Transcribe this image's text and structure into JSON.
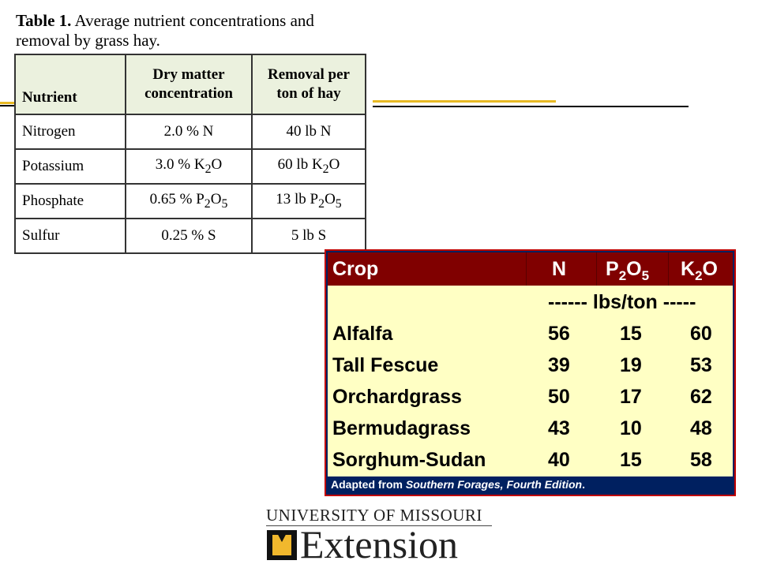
{
  "table1": {
    "caption_label": "Table 1.",
    "caption_text": " Average nutrient concentrations and removal by grass hay.",
    "headers": {
      "nutrient": "Nutrient",
      "dm_line1": "Dry matter",
      "dm_line2": "concentration",
      "rm_line1": "Removal per",
      "rm_line2": "ton of hay"
    },
    "rows": [
      {
        "nutrient": "Nitrogen",
        "dm_pre": "2.0 % N",
        "dm_sub": "",
        "dm_post": "",
        "rm_pre": "40 lb N",
        "rm_sub": "",
        "rm_post": ""
      },
      {
        "nutrient": "Potassium",
        "dm_pre": "3.0 % K",
        "dm_sub": "2",
        "dm_post": "O",
        "rm_pre": "60 lb K",
        "rm_sub": "2",
        "rm_post": "O"
      },
      {
        "nutrient": "Phosphate",
        "dm_pre": "0.65 % P",
        "dm_sub": "2",
        "dm_post": "O",
        "dm_sub2": "5",
        "rm_pre": "13 lb P",
        "rm_sub": "2",
        "rm_post": "O",
        "rm_sub2": "5"
      },
      {
        "nutrient": "Sulfur",
        "dm_pre": "0.25 % S",
        "dm_sub": "",
        "dm_post": "",
        "rm_pre": "5 lb S",
        "rm_sub": "",
        "rm_post": ""
      }
    ]
  },
  "table2": {
    "header": {
      "crop": "Crop",
      "n": "N",
      "p_pre": "P",
      "p_sub": "2",
      "p_post": "O",
      "p_sub2": "5",
      "k_pre": "K",
      "k_sub": "2",
      "k_post": "O"
    },
    "units": "------ lbs/ton -----",
    "rows": [
      {
        "crop": "Alfalfa",
        "n": "56",
        "p": "15",
        "k": "60"
      },
      {
        "crop": "Tall Fescue",
        "n": "39",
        "p": "19",
        "k": "53"
      },
      {
        "crop": "Orchardgrass",
        "n": "50",
        "p": "17",
        "k": "62"
      },
      {
        "crop": "Bermudagrass",
        "n": "43",
        "p": "10",
        "k": "48"
      },
      {
        "crop": "Sorghum-Sudan",
        "n": "40",
        "p": "15",
        "k": "58"
      }
    ],
    "footnote_pre": "Adapted from ",
    "footnote_italic": "Southern Forages, Fourth Edition",
    "footnote_post": "."
  },
  "logo": {
    "top": "UNIVERSITY OF MISSOURI",
    "bottom": "Extension"
  },
  "colors": {
    "header_red": "#800000",
    "body_yellow": "#ffffc4",
    "frame_navy": "#002060",
    "rule_gold": "#e8b923"
  }
}
